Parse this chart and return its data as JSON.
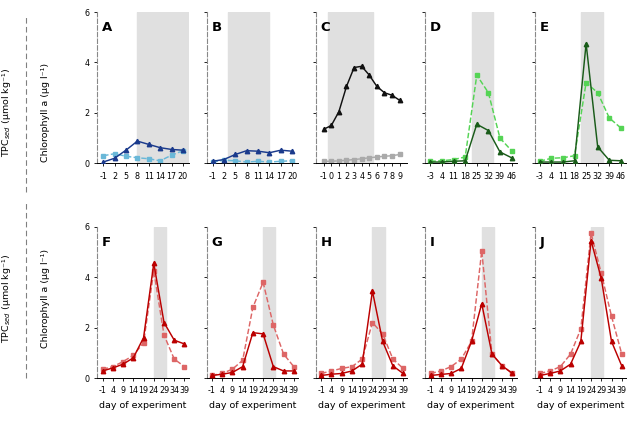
{
  "panels": {
    "A": {
      "label": "A",
      "row": 0,
      "col": 0,
      "color_solid": "#1a3a8c",
      "color_dashed": "#6ab8d8",
      "x_solid": [
        -1,
        2,
        5,
        8,
        11,
        14,
        17,
        20
      ],
      "y_solid": [
        0.05,
        0.2,
        0.52,
        0.88,
        0.75,
        0.62,
        0.55,
        0.52
      ],
      "x_dashed": [
        -1,
        2,
        5,
        8,
        11,
        14,
        17,
        20
      ],
      "y_dashed": [
        0.3,
        0.38,
        0.28,
        0.22,
        0.18,
        0.1,
        0.32,
        0.5
      ],
      "xticks": [
        -1,
        2,
        5,
        8,
        11,
        14,
        17,
        20
      ],
      "xlim": [
        -2.5,
        21.5
      ],
      "ylim": [
        0,
        6
      ],
      "shade_start": 8,
      "shade_end": 21.5
    },
    "B": {
      "label": "B",
      "row": 0,
      "col": 1,
      "color_solid": "#1a3a8c",
      "color_dashed": "#6ab8d8",
      "x_solid": [
        -1,
        2,
        5,
        8,
        11,
        14,
        17,
        20
      ],
      "y_solid": [
        0.08,
        0.15,
        0.35,
        0.5,
        0.48,
        0.42,
        0.52,
        0.48
      ],
      "x_dashed": [
        -1,
        2,
        5,
        8,
        11,
        14,
        17,
        20
      ],
      "y_dashed": [
        0.05,
        0.12,
        0.1,
        0.05,
        0.08,
        0.05,
        0.08,
        0.1
      ],
      "xticks": [
        -1,
        2,
        5,
        8,
        11,
        14,
        17,
        20
      ],
      "xlim": [
        -2.5,
        21.5
      ],
      "ylim": [
        0,
        6
      ],
      "shade_start": 3,
      "shade_end": 14
    },
    "C": {
      "label": "C",
      "row": 0,
      "col": 2,
      "color_solid": "#111111",
      "color_dashed": "#aaaaaa",
      "x_solid": [
        -1,
        0,
        1,
        2,
        3,
        4,
        5,
        6,
        7,
        8,
        9
      ],
      "y_solid": [
        1.35,
        1.5,
        2.05,
        3.05,
        3.8,
        3.85,
        3.5,
        3.05,
        2.8,
        2.7,
        2.5
      ],
      "x_dashed": [
        -1,
        0,
        1,
        2,
        3,
        4,
        5,
        6,
        7,
        8,
        9
      ],
      "y_dashed": [
        0.08,
        0.08,
        0.1,
        0.12,
        0.15,
        0.18,
        0.22,
        0.25,
        0.28,
        0.3,
        0.35
      ],
      "xticks": [
        -1,
        0,
        1,
        2,
        3,
        4,
        5,
        6,
        7,
        8,
        9
      ],
      "xlim": [
        -2,
        10
      ],
      "ylim": [
        0,
        6
      ],
      "shade_start": -0.5,
      "shade_end": 5.5
    },
    "D": {
      "label": "D",
      "row": 0,
      "col": 3,
      "color_solid": "#1a5c1a",
      "color_dashed": "#55d455",
      "x_solid": [
        -3,
        4,
        11,
        18,
        25,
        32,
        39,
        46
      ],
      "y_solid": [
        0.05,
        0.05,
        0.08,
        0.1,
        1.55,
        1.3,
        0.45,
        0.22
      ],
      "x_dashed": [
        -3,
        4,
        11,
        18,
        25,
        32,
        39,
        46
      ],
      "y_dashed": [
        0.08,
        0.1,
        0.15,
        0.25,
        3.5,
        2.8,
        1.0,
        0.5
      ],
      "xticks": [
        -3,
        4,
        11,
        18,
        25,
        32,
        39,
        46
      ],
      "xlim": [
        -6,
        49
      ],
      "ylim": [
        0,
        6
      ],
      "shade_start": 22,
      "shade_end": 35
    },
    "E": {
      "label": "E",
      "row": 0,
      "col": 4,
      "color_solid": "#1a5c1a",
      "color_dashed": "#55d455",
      "x_solid": [
        -3,
        4,
        11,
        18,
        25,
        32,
        39,
        46
      ],
      "y_solid": [
        0.05,
        0.05,
        0.05,
        0.1,
        4.75,
        0.65,
        0.12,
        0.1
      ],
      "x_dashed": [
        -3,
        4,
        11,
        18,
        25,
        32,
        39,
        46
      ],
      "y_dashed": [
        0.08,
        0.2,
        0.22,
        0.3,
        3.2,
        2.8,
        1.8,
        1.4
      ],
      "xticks": [
        -3,
        4,
        11,
        18,
        25,
        32,
        39,
        46
      ],
      "xlim": [
        -6,
        49
      ],
      "ylim": [
        0,
        6
      ],
      "shade_start": 22,
      "shade_end": 35
    },
    "F": {
      "label": "F",
      "row": 1,
      "col": 0,
      "color_solid": "#bb0000",
      "color_dashed": "#dd6666",
      "x_solid": [
        -1,
        4,
        9,
        14,
        19,
        24,
        29,
        34,
        39
      ],
      "y_solid": [
        0.28,
        0.4,
        0.55,
        0.8,
        1.6,
        4.55,
        2.2,
        1.5,
        1.35
      ],
      "x_dashed": [
        -1,
        4,
        9,
        14,
        19,
        24,
        29,
        34,
        39
      ],
      "y_dashed": [
        0.35,
        0.45,
        0.65,
        0.9,
        1.4,
        4.25,
        1.7,
        0.75,
        0.45
      ],
      "xticks": [
        -1,
        4,
        9,
        14,
        19,
        24,
        29,
        34,
        39
      ],
      "xlim": [
        -3.5,
        41
      ],
      "ylim": [
        0,
        6
      ],
      "shade_start": 24,
      "shade_end": 30
    },
    "G": {
      "label": "G",
      "row": 1,
      "col": 1,
      "color_solid": "#bb0000",
      "color_dashed": "#dd6666",
      "x_solid": [
        -1,
        4,
        9,
        14,
        19,
        24,
        29,
        34,
        39
      ],
      "y_solid": [
        0.1,
        0.15,
        0.22,
        0.45,
        1.8,
        1.75,
        0.45,
        0.28,
        0.28
      ],
      "x_dashed": [
        -1,
        4,
        9,
        14,
        19,
        24,
        29,
        34,
        39
      ],
      "y_dashed": [
        0.1,
        0.18,
        0.35,
        0.7,
        2.8,
        3.8,
        2.1,
        0.95,
        0.45
      ],
      "xticks": [
        -1,
        4,
        9,
        14,
        19,
        24,
        29,
        34,
        39
      ],
      "xlim": [
        -3.5,
        41
      ],
      "ylim": [
        0,
        6
      ],
      "shade_start": 24,
      "shade_end": 30
    },
    "H": {
      "label": "H",
      "row": 1,
      "col": 2,
      "color_solid": "#bb0000",
      "color_dashed": "#dd6666",
      "x_solid": [
        -1,
        4,
        9,
        14,
        19,
        24,
        29,
        34,
        39
      ],
      "y_solid": [
        0.1,
        0.15,
        0.18,
        0.28,
        0.55,
        3.45,
        1.45,
        0.48,
        0.18
      ],
      "x_dashed": [
        -1,
        4,
        9,
        14,
        19,
        24,
        29,
        34,
        39
      ],
      "y_dashed": [
        0.18,
        0.28,
        0.38,
        0.45,
        0.75,
        2.2,
        1.75,
        0.75,
        0.38
      ],
      "xticks": [
        -1,
        4,
        9,
        14,
        19,
        24,
        29,
        34,
        39
      ],
      "xlim": [
        -3.5,
        41
      ],
      "ylim": [
        0,
        6
      ],
      "shade_start": 24,
      "shade_end": 30
    },
    "I": {
      "label": "I",
      "row": 1,
      "col": 3,
      "color_solid": "#bb0000",
      "color_dashed": "#dd6666",
      "x_solid": [
        -1,
        4,
        9,
        14,
        19,
        24,
        29,
        34,
        39
      ],
      "y_solid": [
        0.1,
        0.14,
        0.18,
        0.38,
        1.45,
        2.95,
        0.95,
        0.48,
        0.18
      ],
      "x_dashed": [
        -1,
        4,
        9,
        14,
        19,
        24,
        29,
        34,
        39
      ],
      "y_dashed": [
        0.18,
        0.28,
        0.45,
        0.75,
        1.45,
        5.05,
        0.95,
        0.48,
        0.18
      ],
      "xticks": [
        -1,
        4,
        9,
        14,
        19,
        24,
        29,
        34,
        39
      ],
      "xlim": [
        -3.5,
        41
      ],
      "ylim": [
        0,
        6
      ],
      "shade_start": 24,
      "shade_end": 30
    },
    "J": {
      "label": "J",
      "row": 1,
      "col": 4,
      "color_solid": "#bb0000",
      "color_dashed": "#dd6666",
      "x_solid": [
        -1,
        4,
        9,
        14,
        19,
        24,
        29,
        34,
        39
      ],
      "y_solid": [
        0.1,
        0.18,
        0.28,
        0.55,
        1.45,
        5.45,
        3.95,
        1.45,
        0.48
      ],
      "x_dashed": [
        -1,
        4,
        9,
        14,
        19,
        24,
        29,
        34,
        39
      ],
      "y_dashed": [
        0.18,
        0.28,
        0.45,
        0.95,
        1.95,
        5.75,
        4.15,
        2.45,
        0.95
      ],
      "xticks": [
        -1,
        4,
        9,
        14,
        19,
        24,
        29,
        34,
        39
      ],
      "xlim": [
        -3.5,
        41
      ],
      "ylim": [
        0,
        6
      ],
      "shade_start": 24,
      "shade_end": 30
    }
  },
  "yticks": [
    0,
    2,
    4,
    6
  ],
  "ylabel_tpc": "TPC$_{sed}$ (μmol kg⁻¹)",
  "ylabel_chl": "Chlorophyll a (μg l⁻¹)",
  "xlabel": "day of experiment",
  "shade_color": "#e0e0e0",
  "bg_color": "#ffffff",
  "tick_fontsize": 5.8,
  "label_fontsize": 6.8,
  "panel_label_fontsize": 9.5
}
